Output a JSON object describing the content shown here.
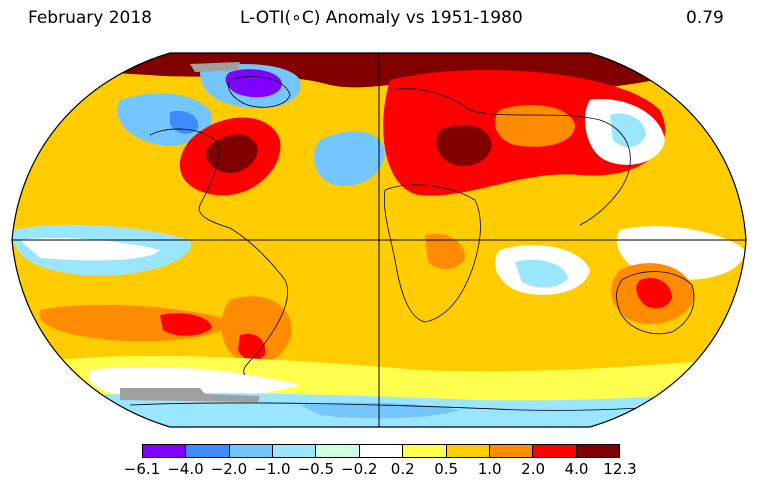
{
  "header": {
    "date": "February 2018",
    "title": "L-OTI(∘C) Anomaly vs 1951-1980",
    "global_mean": "0.79"
  },
  "legend": {
    "ticks": [
      "−6.1",
      "−4.0",
      "−2.0",
      "−1.0",
      "−0.5",
      "−0.2",
      "0.2",
      "0.5",
      "1.0",
      "2.0",
      "4.0",
      "12.3"
    ],
    "colors": [
      "#8000ff",
      "#3d8bff",
      "#73c6ff",
      "#9be6ff",
      "#ccffdd",
      "#ffffff",
      "#ffff4d",
      "#ffcc00",
      "#ff8c00",
      "#ff0000",
      "#800000"
    ]
  },
  "palette": {
    "no_data": "#a0a0a0",
    "coastline": "#000000",
    "background": "#ffffff"
  }
}
